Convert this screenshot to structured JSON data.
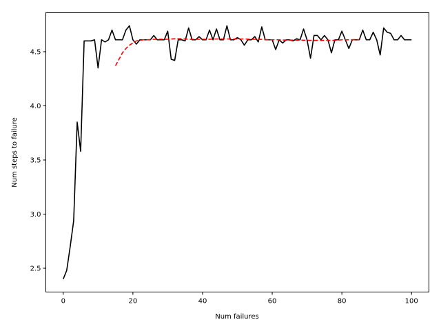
{
  "chart_data": {
    "type": "line",
    "title": "",
    "xlabel": "Num failures",
    "ylabel": "Num steps to failure",
    "xlim": [
      -5,
      105
    ],
    "ylim": [
      2.28,
      4.86
    ],
    "xticks": [
      0,
      20,
      40,
      60,
      80,
      100
    ],
    "yticks": [
      2.5,
      3.0,
      3.5,
      4.0,
      4.5
    ],
    "ytick_labels": [
      "2.5",
      "3.0",
      "3.5",
      "4.0",
      "4.5"
    ],
    "grid": false,
    "legend": "none",
    "series": [
      {
        "color": "#000000",
        "style": "solid",
        "x": [
          0,
          1,
          2,
          3,
          4,
          5,
          6,
          7,
          8,
          9,
          10,
          11,
          12,
          13,
          14,
          15,
          16,
          17,
          18,
          19,
          20,
          21,
          22,
          23,
          24,
          25,
          26,
          27,
          28,
          29,
          30,
          31,
          32,
          33,
          34,
          35,
          36,
          37,
          38,
          39,
          40,
          41,
          42,
          43,
          44,
          45,
          46,
          47,
          48,
          49,
          50,
          51,
          52,
          53,
          54,
          55,
          56,
          57,
          58,
          59,
          60,
          61,
          62,
          63,
          64,
          65,
          66,
          67,
          68,
          69,
          70,
          71,
          72,
          73,
          74,
          75,
          76,
          77,
          78,
          79,
          80,
          81,
          82,
          83,
          84,
          85,
          86,
          87,
          88,
          89,
          90,
          91,
          92,
          93,
          94,
          95,
          96,
          97,
          98,
          99,
          100
        ],
        "y": [
          2.4,
          2.48,
          2.7,
          2.94,
          3.85,
          3.58,
          4.6,
          4.6,
          4.6,
          4.61,
          4.35,
          4.61,
          4.59,
          4.61,
          4.7,
          4.61,
          4.61,
          4.61,
          4.7,
          4.74,
          4.61,
          4.57,
          4.61,
          4.61,
          4.61,
          4.61,
          4.65,
          4.61,
          4.61,
          4.61,
          4.69,
          4.43,
          4.42,
          4.61,
          4.61,
          4.6,
          4.72,
          4.61,
          4.61,
          4.64,
          4.61,
          4.61,
          4.7,
          4.61,
          4.71,
          4.61,
          4.61,
          4.74,
          4.61,
          4.61,
          4.63,
          4.61,
          4.56,
          4.61,
          4.61,
          4.64,
          4.59,
          4.73,
          4.61,
          4.61,
          4.61,
          4.52,
          4.61,
          4.58,
          4.61,
          4.61,
          4.6,
          4.62,
          4.61,
          4.71,
          4.61,
          4.44,
          4.65,
          4.65,
          4.61,
          4.65,
          4.61,
          4.49,
          4.61,
          4.61,
          4.69,
          4.61,
          4.53,
          4.61,
          4.61,
          4.61,
          4.7,
          4.61,
          4.61,
          4.68,
          4.61,
          4.47,
          4.72,
          4.68,
          4.67,
          4.61,
          4.61,
          4.65,
          4.61,
          4.61,
          4.61
        ]
      },
      {
        "color": "#ff0000",
        "style": "dashed",
        "x": [
          15,
          16,
          17,
          18,
          19,
          20,
          21,
          22,
          23,
          24,
          25,
          26,
          27,
          28,
          29,
          30,
          32,
          34,
          36,
          38,
          40,
          42,
          44,
          46,
          48,
          50,
          52,
          54,
          56,
          58,
          60,
          62,
          64,
          66,
          68,
          70,
          72,
          74,
          76,
          78,
          80,
          82,
          84,
          85
        ],
        "y": [
          4.37,
          4.43,
          4.49,
          4.53,
          4.56,
          4.58,
          4.6,
          4.605,
          4.61,
          4.61,
          4.612,
          4.615,
          4.615,
          4.615,
          4.615,
          4.615,
          4.62,
          4.62,
          4.615,
          4.615,
          4.615,
          4.615,
          4.618,
          4.618,
          4.618,
          4.618,
          4.618,
          4.615,
          4.615,
          4.612,
          4.61,
          4.61,
          4.607,
          4.607,
          4.607,
          4.605,
          4.605,
          4.605,
          4.605,
          4.605,
          4.61,
          4.61,
          4.612,
          4.612
        ]
      }
    ]
  }
}
